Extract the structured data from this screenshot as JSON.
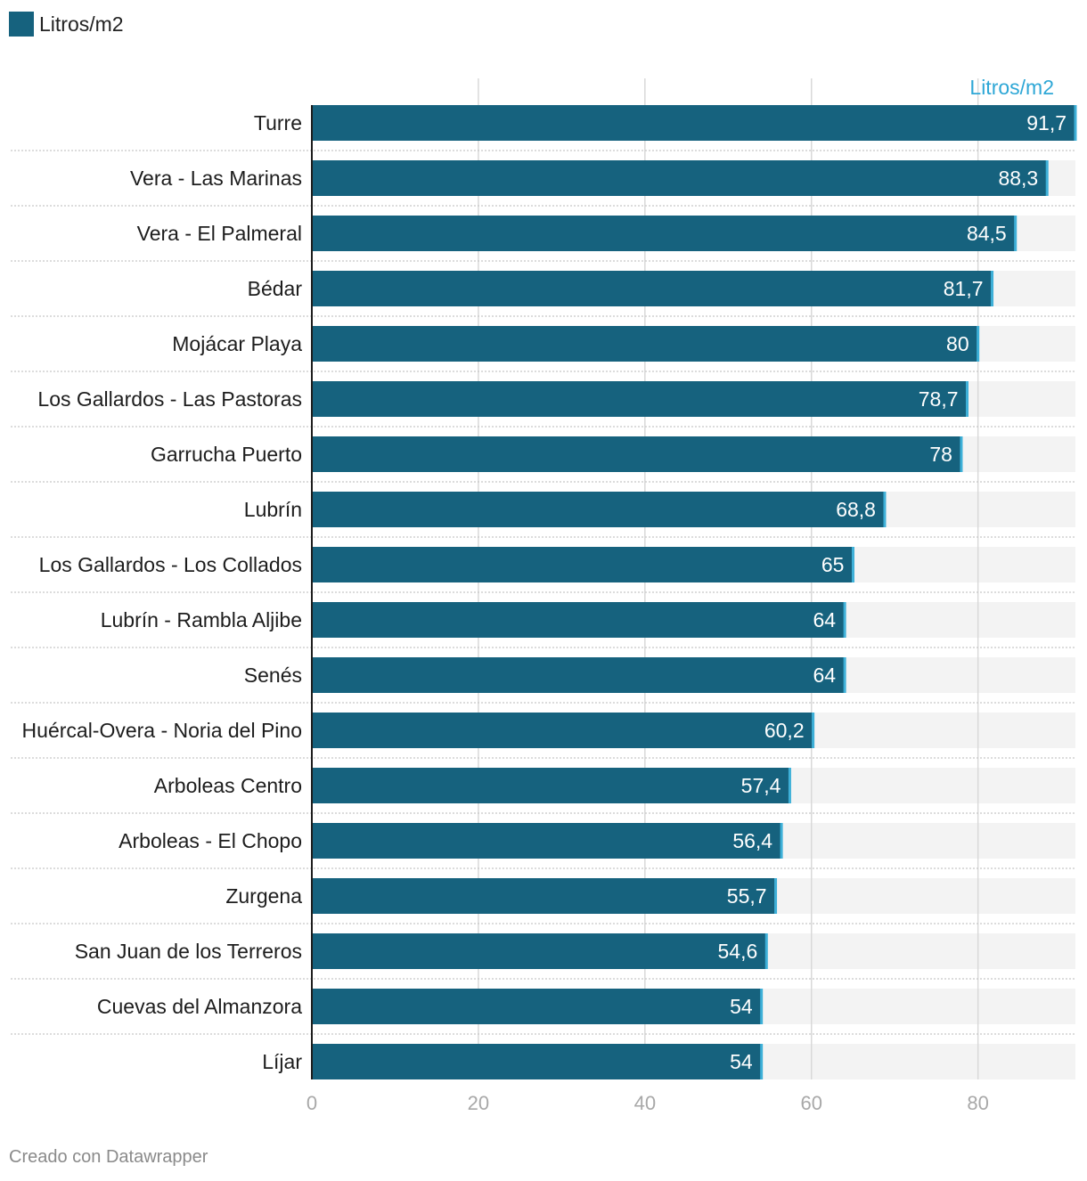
{
  "legend": {
    "label": "Litros/m2",
    "color": "#16627e"
  },
  "footer": {
    "credit": "Creado con Datawrapper"
  },
  "colors": {
    "bar": "#16627e",
    "marker": "#3eb0d8",
    "track": "#f3f3f3",
    "grid": "#d9d9d9",
    "tick_label": "#a8a8a8",
    "series_label": "#2ea7d6"
  },
  "chart_data": {
    "type": "bar",
    "orientation": "horizontal",
    "series_label": "Litros/m2",
    "categories": [
      "Turre",
      "Vera - Las Marinas",
      "Vera - El Palmeral",
      "Bédar",
      "Mojácar Playa",
      "Los Gallardos - Las Pastoras",
      "Garrucha Puerto",
      "Lubrín",
      "Los Gallardos - Los Collados",
      "Lubrín - Rambla Aljibe",
      "Senés",
      "Huércal-Overa - Noria del Pino",
      "Arboleas Centro",
      "Arboleas - El Chopo",
      "Zurgena",
      "San Juan de los Terreros",
      "Cuevas del Almanzora",
      "Líjar"
    ],
    "values": [
      91.7,
      88.3,
      84.5,
      81.7,
      80,
      78.7,
      78,
      68.8,
      65,
      64,
      64,
      60.2,
      57.4,
      56.4,
      55.7,
      54.6,
      54,
      54
    ],
    "value_labels": [
      "91,7",
      "88,3",
      "84,5",
      "81,7",
      "80",
      "78,7",
      "78",
      "68,8",
      "65",
      "64",
      "64",
      "60,2",
      "57,4",
      "56,4",
      "55,7",
      "54,6",
      "54",
      "54"
    ],
    "xlim": [
      0,
      91.7
    ],
    "xticks": [
      0,
      20,
      40,
      60,
      80
    ],
    "xtick_labels": [
      "0",
      "20",
      "40",
      "60",
      "80"
    ],
    "grid": true,
    "legend_position": "top-left"
  }
}
